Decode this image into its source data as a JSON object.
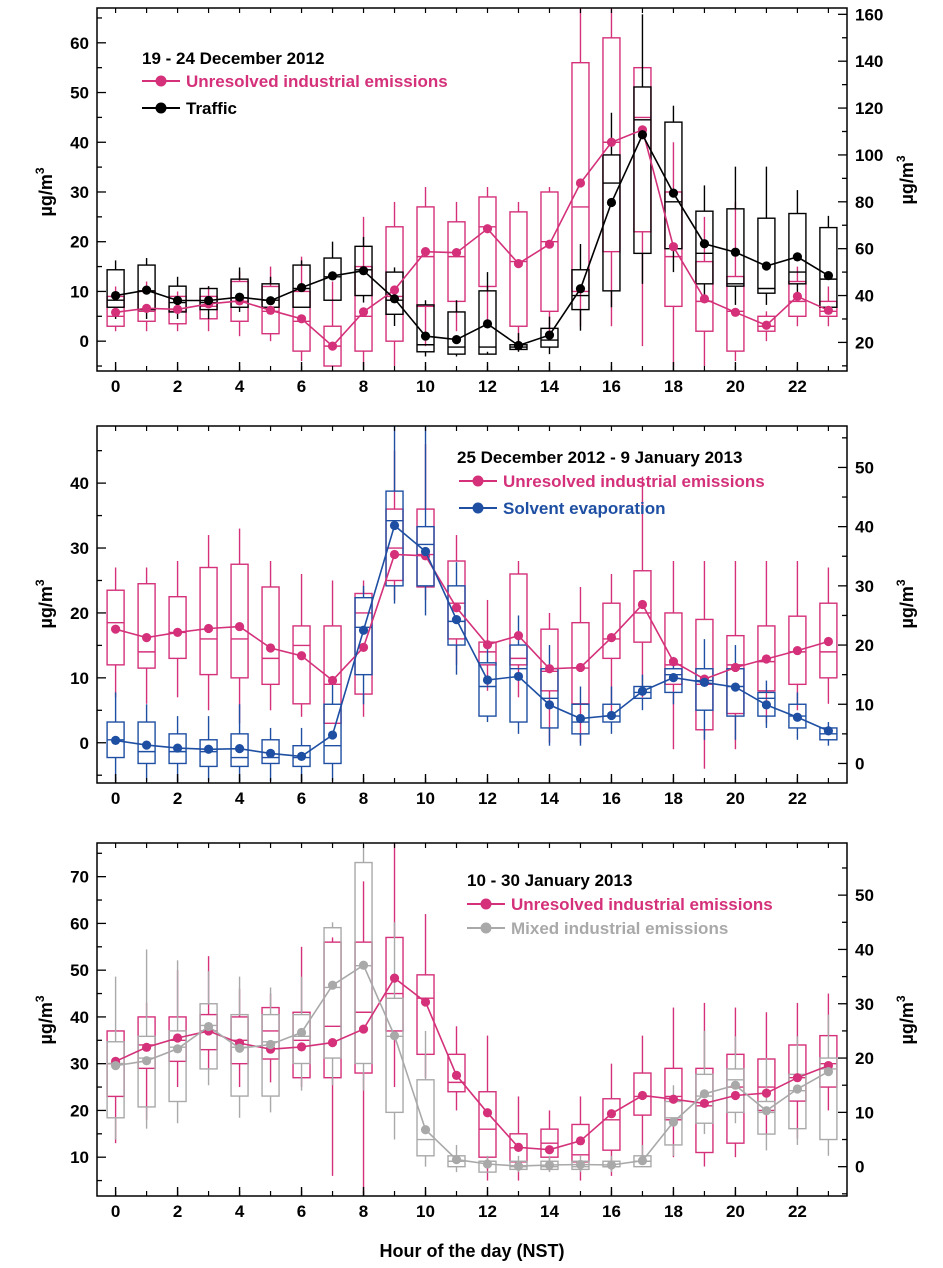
{
  "chart_data": [
    {
      "type": "box",
      "title": "19 - 24 December 2012",
      "x": [
        0,
        1,
        2,
        3,
        4,
        5,
        6,
        7,
        8,
        9,
        10,
        11,
        12,
        13,
        14,
        15,
        16,
        17,
        18,
        19,
        20,
        21,
        22,
        23
      ],
      "xticks": [
        0,
        2,
        4,
        6,
        8,
        10,
        12,
        14,
        16,
        18,
        20,
        22
      ],
      "xlim": [
        -0.6,
        23.6
      ],
      "left_axis": {
        "label": "µg/m",
        "superscript": "3",
        "lim": [
          -6,
          67
        ],
        "ticks": [
          0,
          10,
          20,
          30,
          40,
          50,
          60
        ]
      },
      "right_axis": {
        "label": "µg/m",
        "superscript": "3",
        "lim": [
          7.8,
          162.7
        ],
        "ticks": [
          20,
          40,
          60,
          80,
          100,
          120,
          140,
          160
        ]
      },
      "series": [
        {
          "name": "Unresolved industrial emissions",
          "color": "#d4317a",
          "axis": "left",
          "marker": "circle",
          "mean": [
            5.8,
            6.6,
            6.4,
            7.5,
            8.1,
            6.2,
            4.5,
            -1,
            5.9,
            10.3,
            18,
            17.8,
            22.6,
            15.6,
            19.5,
            31.8,
            40,
            42.5,
            19,
            8.5,
            5.8,
            3.2,
            9,
            6.2
          ],
          "q1": [
            3,
            4,
            3.5,
            4.5,
            4,
            1.5,
            -2,
            -5,
            -2,
            0,
            7,
            8,
            11,
            3,
            6,
            10,
            18,
            22,
            7,
            2,
            -2,
            2,
            5,
            5
          ],
          "median": [
            5,
            6,
            6,
            7,
            8,
            6,
            4,
            -1,
            5,
            9,
            17,
            17,
            23,
            16,
            20,
            27,
            40,
            45,
            17,
            8,
            6,
            3,
            8,
            6
          ],
          "q3": [
            9,
            10,
            9,
            9,
            12,
            11,
            10,
            3,
            15,
            23,
            27,
            24,
            29,
            26,
            30,
            56,
            61,
            55,
            30,
            16,
            13,
            5,
            12,
            8
          ],
          "low": [
            2,
            2,
            2,
            2,
            1,
            0,
            -4,
            -5,
            -5,
            -5,
            -1,
            2,
            3,
            -2,
            2,
            3,
            3,
            -1,
            -5,
            -5,
            -4,
            0,
            3,
            3
          ],
          "high": [
            11,
            12,
            10,
            11,
            14,
            15,
            17,
            12,
            25,
            28,
            31,
            28,
            31,
            28,
            31,
            67,
            70,
            55,
            40,
            25,
            28,
            6,
            15,
            11
          ]
        },
        {
          "name": "Traffic",
          "color": "#000000",
          "axis": "right",
          "marker": "circle",
          "mean": [
            40,
            42.3,
            37.9,
            37.9,
            39.3,
            37.8,
            43.4,
            48.4,
            50.6,
            38.6,
            22.7,
            21.2,
            27.9,
            18.7,
            23.1,
            42.9,
            79.7,
            108.6,
            83.7,
            62.1,
            58.5,
            52.6,
            56.5,
            48.5
          ],
          "q1": [
            35,
            34,
            33,
            34,
            35,
            35,
            35,
            38,
            40,
            32,
            16,
            15,
            15,
            17,
            18,
            34,
            42,
            58,
            60,
            45,
            44,
            41,
            45,
            35
          ],
          "median": [
            38,
            42,
            37,
            37,
            39,
            38,
            43,
            48,
            51,
            38,
            19,
            18,
            18,
            18,
            21,
            40,
            88,
            115,
            80,
            58,
            45,
            43,
            50,
            47
          ],
          "q3": [
            51,
            53,
            44,
            43,
            47,
            45,
            53,
            56,
            61,
            50,
            36,
            33,
            42,
            19,
            26,
            51,
            100,
            129,
            114,
            76,
            77,
            73,
            75,
            69
          ],
          "low": [
            30,
            30,
            30,
            30,
            33,
            33,
            35,
            38,
            37,
            27,
            14,
            14,
            16,
            16,
            15,
            25,
            35,
            45,
            50,
            38,
            36,
            36,
            38,
            32
          ],
          "high": [
            55,
            56,
            48,
            44,
            52,
            48,
            55,
            63,
            65,
            52,
            38,
            38,
            50,
            24,
            31,
            62,
            118,
            160,
            121,
            87,
            95,
            95,
            85,
            74
          ]
        }
      ]
    },
    {
      "type": "box",
      "title": "25 December 2012 - 9 January 2013",
      "x": [
        0,
        1,
        2,
        3,
        4,
        5,
        6,
        7,
        8,
        9,
        10,
        11,
        12,
        13,
        14,
        15,
        16,
        17,
        18,
        19,
        20,
        21,
        22,
        23
      ],
      "xticks": [
        0,
        2,
        4,
        6,
        8,
        10,
        12,
        14,
        16,
        18,
        20,
        22
      ],
      "xlim": [
        -0.6,
        23.6
      ],
      "left_axis": {
        "label": "µg/m",
        "superscript": "3",
        "lim": [
          -6.2,
          48.8
        ],
        "ticks": [
          0,
          10,
          20,
          30,
          40
        ]
      },
      "right_axis": {
        "label": "µg/m",
        "superscript": "3",
        "lim": [
          -3.3,
          57.0
        ],
        "ticks": [
          0,
          10,
          20,
          30,
          40,
          50
        ]
      },
      "series": [
        {
          "name": "Unresolved industrial emissions",
          "color": "#d4317a",
          "axis": "left",
          "marker": "circle",
          "mean": [
            17.5,
            16.2,
            17.0,
            17.6,
            17.9,
            14.6,
            13.4,
            9.6,
            14.7,
            29.0,
            28.8,
            20.8,
            15.1,
            16.5,
            11.4,
            11.6,
            16.2,
            21.3,
            12.5,
            9.8,
            11.6,
            12.9,
            14.2,
            15.6
          ],
          "q1": [
            12,
            11.5,
            13,
            10.5,
            10,
            9,
            6,
            3,
            7.5,
            25,
            24,
            16,
            12,
            12,
            8,
            6,
            13,
            15.5,
            9,
            2,
            4.5,
            8,
            9,
            10
          ],
          "median": [
            18.5,
            14,
            17,
            16,
            16,
            13,
            15,
            9,
            20,
            30,
            29,
            21.5,
            14,
            13,
            11,
            11.5,
            16,
            20,
            12,
            9,
            12,
            12.5,
            14,
            14
          ],
          "q3": [
            23.5,
            24.5,
            22.5,
            27,
            27.5,
            24,
            18,
            18,
            23,
            36,
            36,
            28,
            15.5,
            26,
            17.5,
            18.5,
            21.5,
            26.5,
            20,
            19,
            16.5,
            18,
            19.5,
            21.5
          ],
          "low": [
            7,
            6,
            7,
            5,
            3,
            5,
            4,
            3,
            4,
            22,
            22,
            12,
            8,
            7,
            0,
            0,
            4,
            7,
            -1,
            -4,
            -1,
            3,
            5,
            6
          ],
          "high": [
            27,
            27,
            28,
            32,
            33,
            28,
            26,
            25,
            25,
            45,
            46,
            32,
            22,
            28,
            20,
            24,
            26,
            41,
            28,
            28,
            28,
            28,
            28,
            27
          ]
        },
        {
          "name": "Solvent evaporation",
          "color": "#1e4fa3",
          "axis": "right",
          "marker": "circle",
          "mean": [
            3.9,
            3.1,
            2.6,
            2.4,
            2.5,
            1.7,
            1.2,
            4.8,
            22.5,
            40.2,
            35.8,
            24.3,
            14.1,
            14.7,
            9.9,
            7.6,
            8.1,
            12.2,
            14.5,
            13.7,
            12.9,
            9.9,
            7.8,
            5.5
          ],
          "q1": [
            1,
            0,
            0,
            -0.5,
            -0.5,
            0,
            -0.5,
            0,
            15,
            30,
            30,
            20,
            8,
            7,
            6,
            5,
            7,
            11,
            12,
            9,
            8,
            8,
            6,
            4
          ],
          "median": [
            4,
            2,
            2,
            2,
            1,
            1,
            1,
            3,
            23,
            41,
            37,
            24,
            13,
            16,
            11,
            7,
            8,
            12,
            15,
            14,
            13,
            11,
            8,
            5
          ],
          "q3": [
            7,
            7,
            5,
            4,
            5,
            4,
            3,
            10,
            28,
            46,
            40,
            30,
            17,
            20,
            16,
            10,
            10,
            13,
            16,
            16,
            16,
            12,
            10,
            6
          ],
          "low": [
            -3,
            -3,
            -3,
            -3,
            -3,
            -3,
            -3,
            -3,
            10,
            27,
            25,
            15,
            7,
            5,
            3,
            3,
            5,
            9,
            10,
            4,
            4,
            6,
            4,
            3
          ],
          "high": [
            12,
            10,
            8,
            8,
            10,
            6,
            6,
            14,
            30,
            57,
            57,
            34,
            20,
            25,
            20,
            13,
            13,
            15,
            18,
            21,
            20,
            14,
            12,
            7
          ]
        }
      ]
    },
    {
      "type": "box",
      "title": "10 - 30 January 2013",
      "xlabel": "Hour of the day (NST)",
      "x": [
        0,
        1,
        2,
        3,
        4,
        5,
        6,
        7,
        8,
        9,
        10,
        11,
        12,
        13,
        14,
        15,
        16,
        17,
        18,
        19,
        20,
        21,
        22,
        23
      ],
      "xticks": [
        0,
        2,
        4,
        6,
        8,
        10,
        12,
        14,
        16,
        18,
        20,
        22
      ],
      "xlim": [
        -0.6,
        23.6
      ],
      "left_axis": {
        "label": "µg/m",
        "superscript": "3",
        "lim": [
          1.7,
          77.2
        ],
        "ticks": [
          10,
          20,
          30,
          40,
          50,
          60,
          70
        ]
      },
      "right_axis": {
        "label": "µg/m",
        "superscript": "3",
        "lim": [
          -5.4,
          59.6
        ],
        "ticks": [
          0,
          10,
          20,
          30,
          40,
          50
        ]
      },
      "series": [
        {
          "name": "Unresolved industrial emissions",
          "color": "#d4317a",
          "axis": "left",
          "marker": "circle",
          "mean": [
            30.5,
            33.5,
            35.5,
            37,
            34.4,
            33.1,
            33.6,
            34.5,
            37.4,
            48.3,
            43.2,
            27.5,
            19.5,
            12.1,
            11.6,
            13.5,
            19.3,
            23.2,
            22.4,
            21.5,
            23.2,
            23.7,
            27,
            29.6
          ],
          "q1": [
            23,
            29,
            30.5,
            33,
            30,
            31,
            27,
            27,
            28,
            37,
            32,
            24,
            10,
            9,
            10,
            9,
            11.5,
            19,
            18,
            11,
            13,
            20,
            22,
            25
          ],
          "median": [
            30,
            34,
            35,
            37,
            35,
            37,
            35,
            38,
            41,
            45,
            44,
            26,
            16,
            12,
            13,
            10.5,
            18,
            23,
            23,
            21,
            25,
            25,
            27,
            30
          ],
          "q3": [
            37,
            40,
            40,
            40.5,
            40,
            42,
            41,
            56,
            56,
            57,
            49,
            32,
            24,
            15,
            16,
            17,
            22.5,
            28,
            29,
            29,
            32,
            31,
            34,
            36
          ],
          "low": [
            13,
            18,
            25,
            29,
            25,
            26,
            25,
            6,
            2,
            25,
            27,
            20,
            5,
            5,
            7,
            5,
            6,
            9,
            10,
            8,
            10,
            15,
            14,
            20
          ],
          "high": [
            37,
            43,
            50,
            53,
            46,
            45,
            55,
            57,
            69,
            77,
            62,
            38,
            36,
            23,
            20,
            23,
            30,
            36,
            42,
            43,
            42,
            41,
            43,
            45
          ]
        },
        {
          "name": "Mixed industrial emissions",
          "color": "#a9a9a9",
          "axis": "right",
          "marker": "circle",
          "mean": [
            18.6,
            19.5,
            21.7,
            25.8,
            21.8,
            22.5,
            24.7,
            33.4,
            37.1,
            24.1,
            6.8,
            1.3,
            0.5,
            0.1,
            0.3,
            0.4,
            0.3,
            1.1,
            8.2,
            13.4,
            15,
            10.3,
            14.3,
            17.5
          ],
          "q1": [
            9,
            11,
            12,
            18,
            13,
            13,
            19,
            20,
            19,
            10,
            2,
            0,
            -1,
            -0.5,
            -0.5,
            -0.5,
            0,
            0,
            4,
            8,
            10,
            6,
            7,
            5
          ],
          "median": [
            19,
            20,
            22,
            26,
            22,
            23,
            24,
            33,
            37,
            24,
            5,
            1,
            1,
            0,
            0,
            0,
            0,
            1,
            9,
            13,
            16,
            10,
            14,
            18
          ],
          "q3": [
            23,
            24,
            25,
            30,
            28,
            28,
            28,
            44,
            56,
            31,
            16,
            2,
            1,
            1,
            1,
            1,
            1,
            2,
            12,
            17,
            18,
            12,
            17,
            20
          ],
          "low": [
            5,
            7,
            8,
            15,
            9,
            10,
            14,
            15,
            14,
            5,
            0,
            -1,
            -1,
            -1,
            -1,
            -1,
            -1,
            0,
            2,
            6,
            8,
            3,
            4,
            2
          ],
          "high": [
            35,
            40,
            38,
            36,
            35,
            33,
            35,
            45,
            60,
            45,
            25,
            4,
            2,
            2,
            2,
            2,
            2,
            4,
            15,
            25,
            24,
            20,
            24,
            28
          ]
        }
      ]
    }
  ]
}
